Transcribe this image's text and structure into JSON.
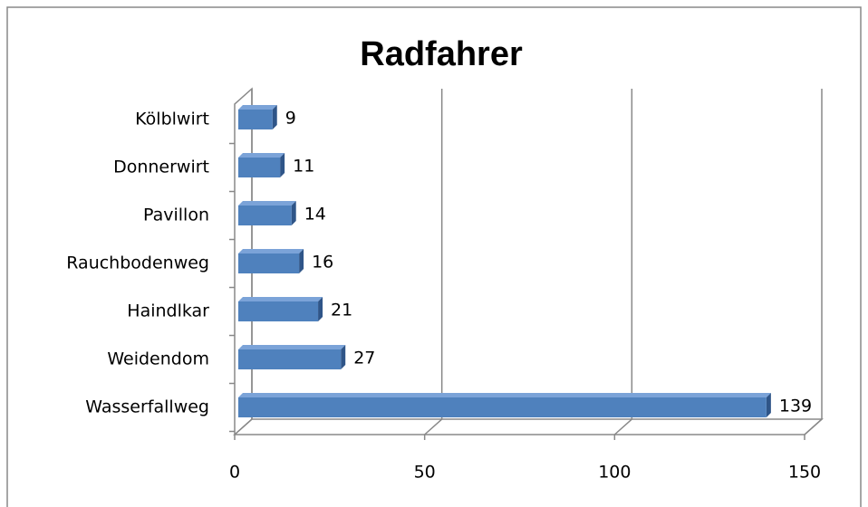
{
  "chart_data": {
    "type": "bar",
    "orientation": "horizontal",
    "title": "Radfahrer",
    "categories": [
      "Wasserfallweg",
      "Weidendom",
      "Haindlkar",
      "Rauchbodenweg",
      "Pavillon",
      "Donnerwirt",
      "Kölblwirt"
    ],
    "values": [
      139,
      27,
      21,
      16,
      14,
      11,
      9
    ],
    "color": "#4f81bd",
    "xlim": [
      0,
      150
    ],
    "xticks": [
      0,
      50,
      100,
      150
    ],
    "grid": true
  }
}
